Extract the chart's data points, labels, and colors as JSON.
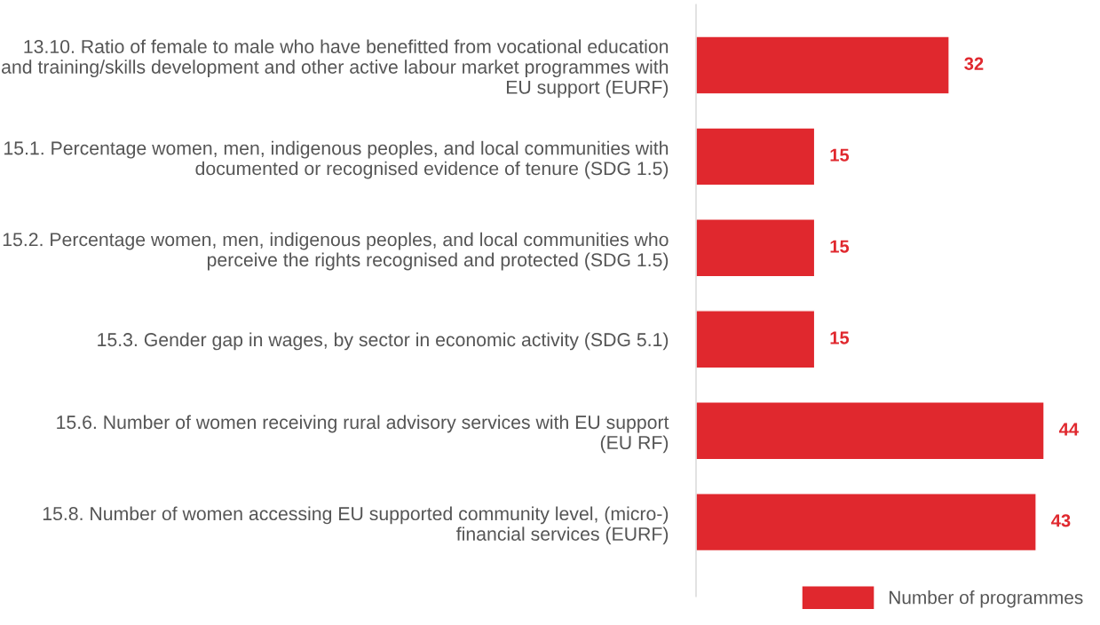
{
  "chart_data": {
    "type": "bar",
    "orientation": "horizontal",
    "categories": [
      "13.10. Ratio of female to male who have benefitted from vocational education\nand training/skills development and other active labour market programmes with\nEU support (EURF)",
      "15.1. Percentage women, men, indigenous peoples, and local communities with\ndocumented or recognised evidence of tenure (SDG 1.5)",
      "15.2. Percentage women, men, indigenous peoples, and local communities who\nperceive the rights recognised and protected (SDG 1.5)",
      "15.3. Gender gap in wages, by sector in economic activity (SDG 5.1)",
      "15.6. Number of women receiving rural advisory services with EU support\n(EU RF)",
      "15.8. Number of women accessing EU supported community level, (micro-)\nfinancial services (EURF)"
    ],
    "series": [
      {
        "name": "Number of programmes",
        "color": "#e0282e",
        "values": [
          32,
          15,
          15,
          15,
          44,
          43
        ]
      }
    ],
    "data_labels": true,
    "legend": "bottom right",
    "grid": false
  }
}
